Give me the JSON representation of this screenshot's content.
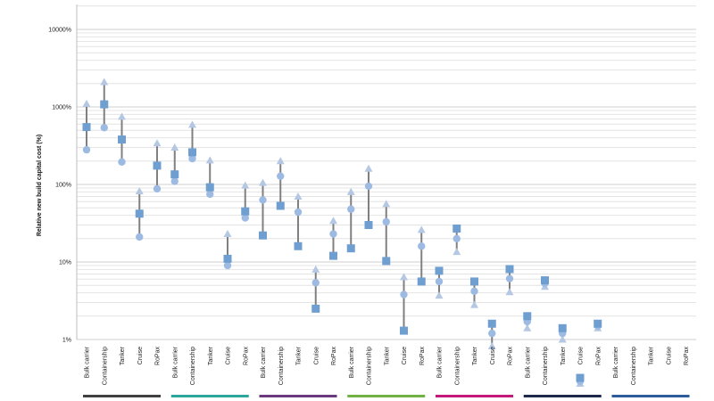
{
  "chart_data": {
    "type": "scatter",
    "ylabel": "Relative new build capital cost (%)",
    "yscale": "log",
    "ylim": [
      1,
      20000
    ],
    "yticks": [
      "1%",
      "10%",
      "100%",
      "1000%",
      "10000%"
    ],
    "grid": true,
    "colors": {
      "whisker": "#808080",
      "square": "#6f9fd0",
      "circle": "#9dbbe2",
      "triangle": "#b4c7e3",
      "groups": [
        "#404040",
        "#2aa79a",
        "#6b3a7e",
        "#72b244",
        "#c4187a",
        "#1e2a4a",
        "#2e5b9a"
      ]
    },
    "groups": [
      {
        "categories": [
          "Bulk carrier",
          "Containership",
          "Tanker",
          "Cruise",
          "RoPax"
        ],
        "square": [
          550,
          1080,
          380,
          42,
          175
        ],
        "circle": [
          280,
          540,
          195,
          21,
          88
        ],
        "triangle": [
          1100,
          2100,
          750,
          82,
          340
        ]
      },
      {
        "categories": [
          "Bulk carrier",
          "Containership",
          "Tanker",
          "Cruise",
          "RoPax"
        ],
        "square": [
          135,
          260,
          92,
          11,
          45
        ],
        "circle": [
          110,
          215,
          75,
          9,
          37
        ],
        "triangle": [
          300,
          590,
          205,
          23,
          97
        ]
      },
      {
        "categories": [
          "Bulk carrier",
          "Containership",
          "Tanker",
          "Cruise",
          "RoPax"
        ],
        "square": [
          22,
          53,
          16,
          2.5,
          12
        ],
        "circle": [
          63,
          128,
          44,
          5.4,
          23
        ],
        "triangle": [
          105,
          200,
          70,
          8,
          34
        ]
      },
      {
        "categories": [
          "Bulk carrier",
          "Containership",
          "Tanker",
          "Cruise",
          "RoPax"
        ],
        "square": [
          15,
          30,
          10.3,
          1.3,
          5.6
        ],
        "circle": [
          48,
          95,
          33,
          3.8,
          16
        ],
        "triangle": [
          80,
          160,
          56,
          6.4,
          26
        ]
      },
      {
        "categories": [
          "Bulk carrier",
          "Containership",
          "Tanker",
          "Cruise",
          "RoPax"
        ],
        "square": [
          7.7,
          27,
          5.6,
          1.6,
          8.1
        ],
        "circle": [
          5.6,
          20,
          4.2,
          1.2,
          6.1
        ],
        "triangle": [
          3.7,
          13.5,
          2.8,
          0.82,
          4.1
        ]
      },
      {
        "categories": [
          "Bulk carrier",
          "Containership",
          "Tanker",
          "Cruise",
          "RoPax"
        ],
        "square": [
          2.0,
          5.8,
          1.4,
          0.32,
          1.6
        ],
        "circle": [
          1.7,
          5.3,
          1.2,
          0.29,
          1.5
        ],
        "triangle": [
          1.4,
          4.8,
          1.0,
          0.27,
          1.4
        ]
      },
      {
        "categories": [
          "Bulk carrier",
          "Containership",
          "Tanker",
          "Cruise",
          "RoPax"
        ],
        "square": [
          null,
          null,
          null,
          null,
          null
        ],
        "circle": [
          null,
          null,
          null,
          null,
          null
        ],
        "triangle": [
          null,
          null,
          null,
          null,
          null
        ]
      }
    ]
  }
}
